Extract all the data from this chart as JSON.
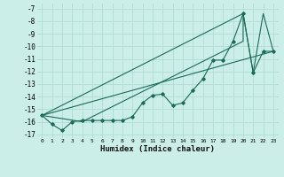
{
  "xlabel": "Humidex (Indice chaleur)",
  "bg_color": "#cceee8",
  "grid_color": "#b0ddd4",
  "line_color": "#1a6b5a",
  "xlim": [
    -0.5,
    23.5
  ],
  "ylim": [
    -17.3,
    -6.6
  ],
  "xtick_labels": [
    "0",
    "1",
    "2",
    "3",
    "4",
    "5",
    "6",
    "7",
    "8",
    "9",
    "10",
    "11",
    "12",
    "13",
    "14",
    "15",
    "16",
    "17",
    "18",
    "19",
    "20",
    "21",
    "22",
    "23"
  ],
  "xtick_vals": [
    0,
    1,
    2,
    3,
    4,
    5,
    6,
    7,
    8,
    9,
    10,
    11,
    12,
    13,
    14,
    15,
    16,
    17,
    18,
    19,
    20,
    21,
    22,
    23
  ],
  "ytick_vals": [
    -7,
    -8,
    -9,
    -10,
    -11,
    -12,
    -13,
    -14,
    -15,
    -16,
    -17
  ],
  "ytick_labels": [
    "-7",
    "-8",
    "-9",
    "-10",
    "-11",
    "-12",
    "-13",
    "-14",
    "-15",
    "-16",
    "-17"
  ],
  "series": [
    [
      0,
      -15.5
    ],
    [
      1,
      -16.2
    ],
    [
      2,
      -16.7
    ],
    [
      3,
      -16.0
    ],
    [
      4,
      -15.9
    ],
    [
      5,
      -15.9
    ],
    [
      6,
      -15.9
    ],
    [
      7,
      -15.9
    ],
    [
      8,
      -15.9
    ],
    [
      9,
      -15.6
    ],
    [
      10,
      -14.5
    ],
    [
      11,
      -13.9
    ],
    [
      12,
      -13.8
    ],
    [
      13,
      -14.7
    ],
    [
      14,
      -14.5
    ],
    [
      15,
      -13.5
    ],
    [
      16,
      -12.6
    ],
    [
      17,
      -11.1
    ],
    [
      18,
      -11.1
    ],
    [
      19,
      -9.6
    ],
    [
      20,
      -7.4
    ],
    [
      21,
      -12.1
    ],
    [
      22,
      -10.4
    ],
    [
      23,
      -10.4
    ]
  ],
  "line_straight1": [
    [
      0,
      -15.5
    ],
    [
      20,
      -7.4
    ]
  ],
  "line_straight2": [
    [
      0,
      -15.5
    ],
    [
      23,
      -10.4
    ]
  ],
  "line_zigzag": [
    [
      0,
      -15.5
    ],
    [
      4,
      -16.0
    ],
    [
      20,
      -9.6
    ],
    [
      20,
      -7.4
    ],
    [
      21,
      -12.1
    ],
    [
      22,
      -7.4
    ],
    [
      23,
      -10.4
    ]
  ]
}
